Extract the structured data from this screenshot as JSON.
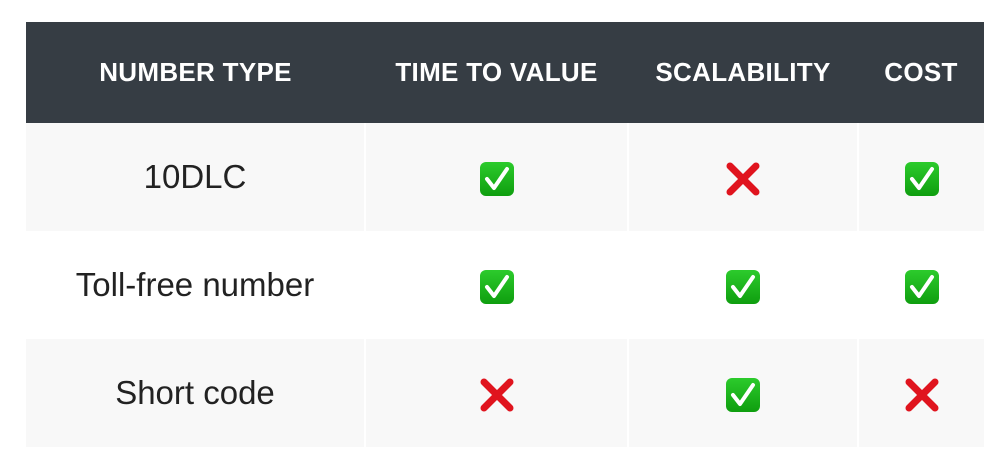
{
  "columns": [
    "NUMBER TYPE",
    "TIME TO VALUE",
    "SCALABILITY",
    "COST"
  ],
  "rows": [
    {
      "label": "10DLC",
      "values": [
        "check",
        "cross",
        "check"
      ]
    },
    {
      "label": "Toll-free number",
      "values": [
        "check",
        "check",
        "check"
      ]
    },
    {
      "label": "Short code",
      "values": [
        "cross",
        "check",
        "cross"
      ]
    }
  ],
  "colors": {
    "header_bg": "#363d44",
    "check": "#1db31d",
    "cross": "#e0141e",
    "alt_row": "#f8f8f8"
  }
}
